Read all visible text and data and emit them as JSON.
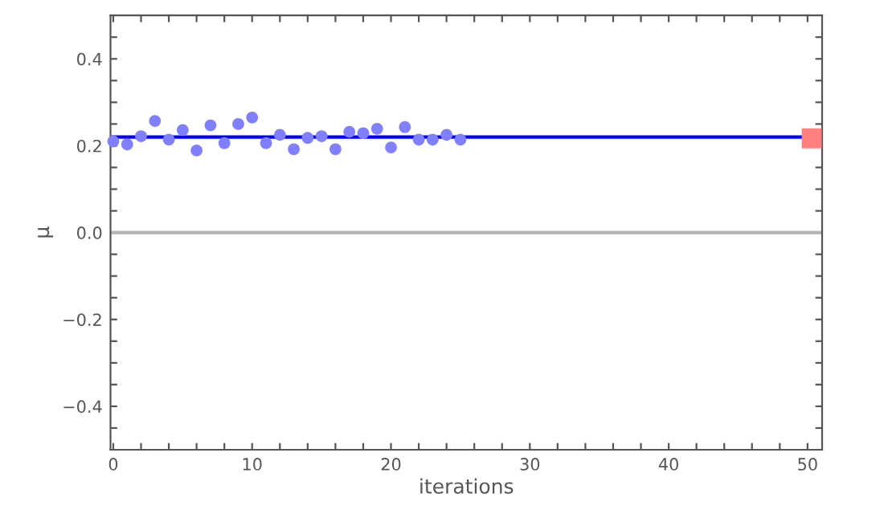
{
  "chart_data": {
    "type": "scatter",
    "xlabel": "iterations",
    "ylabel": "μ",
    "xlim": [
      -0.2,
      51.05
    ],
    "ylim": [
      -0.5,
      0.5
    ],
    "xticks": [
      0,
      {
        "value": 2,
        "label": null
      },
      {
        "value": 4,
        "label": null
      },
      {
        "value": 6,
        "label": null
      },
      {
        "value": 8,
        "label": null
      },
      10,
      {
        "value": 12,
        "label": null
      },
      {
        "value": 14,
        "label": null
      },
      {
        "value": 16,
        "label": null
      },
      {
        "value": 18,
        "label": null
      },
      20,
      {
        "value": 22,
        "label": null
      },
      {
        "value": 24,
        "label": null
      },
      {
        "value": 26,
        "label": null
      },
      {
        "value": 28,
        "label": null
      },
      30,
      {
        "value": 32,
        "label": null
      },
      {
        "value": 34,
        "label": null
      },
      {
        "value": 36,
        "label": null
      },
      {
        "value": 38,
        "label": null
      },
      40,
      {
        "value": 42,
        "label": null
      },
      {
        "value": 44,
        "label": null
      },
      {
        "value": 46,
        "label": null
      },
      {
        "value": 48,
        "label": null
      },
      50
    ],
    "yticks": [
      {
        "value": -0.45,
        "label": null
      },
      {
        "value": -0.4,
        "label": "−0.4"
      },
      {
        "value": -0.35,
        "label": null
      },
      {
        "value": -0.3,
        "label": null
      },
      {
        "value": -0.25,
        "label": null
      },
      {
        "value": -0.2,
        "label": "−0.2"
      },
      {
        "value": -0.15,
        "label": null
      },
      {
        "value": -0.1,
        "label": null
      },
      {
        "value": -0.05,
        "label": null
      },
      {
        "value": 0,
        "label": "0.0"
      },
      {
        "value": 0.05,
        "label": null
      },
      {
        "value": 0.1,
        "label": null
      },
      {
        "value": 0.15,
        "label": null
      },
      {
        "value": 0.2,
        "label": "0.2"
      },
      {
        "value": 0.25,
        "label": null
      },
      {
        "value": 0.3,
        "label": null
      },
      {
        "value": 0.35,
        "label": null
      },
      {
        "value": 0.4,
        "label": "0.4"
      },
      {
        "value": 0.45,
        "label": null
      }
    ],
    "grid": false,
    "legend": false,
    "ref_lines": [
      {
        "axis": "y",
        "value": 0,
        "color": "#b3b3b3"
      }
    ],
    "series": [
      {
        "type": "line",
        "color": "#0000ff",
        "x": [
          0,
          50
        ],
        "values": [
          0.22,
          0.22
        ]
      },
      {
        "marker": "circle",
        "color": "#7f7fff",
        "x": [
          0,
          1,
          2,
          3,
          4,
          5,
          6,
          7,
          8,
          9,
          10,
          11,
          12,
          13,
          14,
          15,
          16,
          17,
          18,
          19,
          20,
          21,
          22,
          23,
          24,
          25
        ],
        "values": [
          0.21,
          0.203,
          0.222,
          0.257,
          0.214,
          0.236,
          0.189,
          0.247,
          0.206,
          0.25,
          0.265,
          0.206,
          0.225,
          0.192,
          0.218,
          0.222,
          0.192,
          0.232,
          0.229,
          0.239,
          0.196,
          0.243,
          0.214,
          0.214,
          0.225,
          0.214
        ]
      },
      {
        "marker": "square",
        "color": "#ff7f7f",
        "x": [
          50.3
        ],
        "values": [
          0.217
        ]
      }
    ]
  }
}
